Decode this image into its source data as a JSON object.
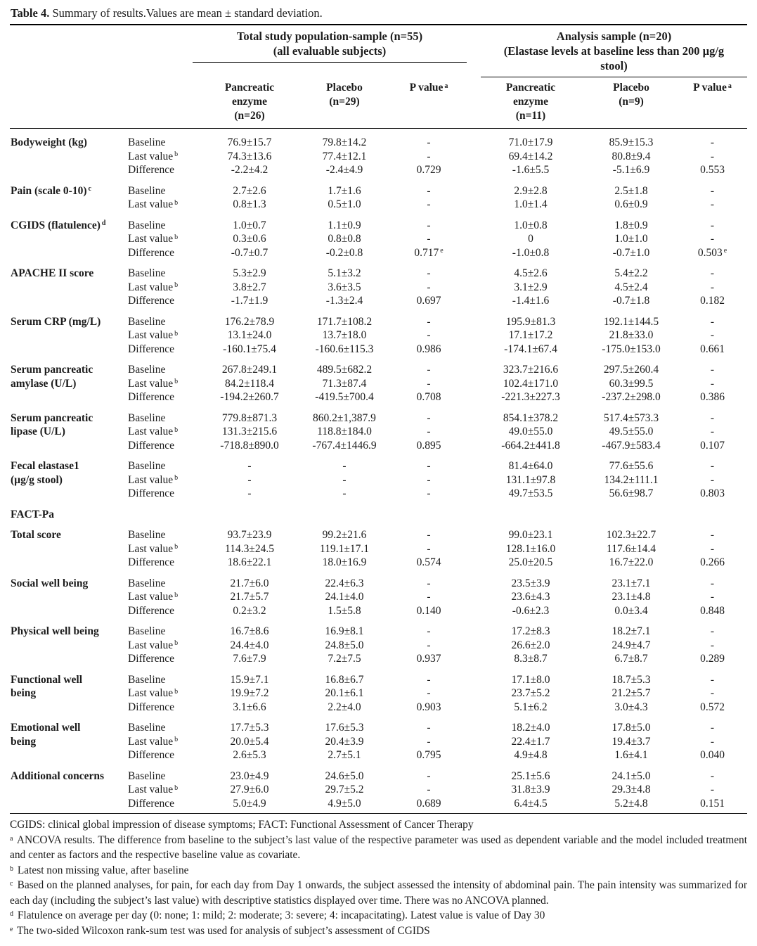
{
  "title": {
    "bold": "Table 4.",
    "rest": " Summary of results.Values are mean ± standard deviation."
  },
  "table": {
    "groups": [
      {
        "lines": [
          "Total study population-sample (n=55)",
          "(all evaluable subjects)"
        ]
      },
      {
        "lines": [
          "Analysis sample (n=20)",
          "(Elastase levels at baseline less than 200 µg/g",
          "stool)"
        ]
      }
    ],
    "columns": [
      {
        "lines": [
          "Pancreatic",
          "enzyme",
          "(n=26)"
        ]
      },
      {
        "lines": [
          "Placebo",
          "(n=29)"
        ]
      },
      {
        "lines": [
          "P value^a"
        ]
      },
      {
        "lines": [
          "Pancreatic",
          "enzyme",
          "(n=11)"
        ]
      },
      {
        "lines": [
          "Placebo",
          "(n=9)"
        ]
      },
      {
        "lines": [
          "P value^a"
        ]
      }
    ],
    "rows": [
      {
        "label": "Bodyweight (kg)",
        "entries": [
          {
            "sub": "Baseline",
            "values": [
              "76.9±15.7",
              "79.8±14.2",
              "-",
              "71.0±17.9",
              "85.9±15.3",
              "-"
            ]
          },
          {
            "sub": "Last value^b",
            "values": [
              "74.3±13.6",
              "77.4±12.1",
              "-",
              "69.4±14.2",
              "80.8±9.4",
              "-"
            ]
          },
          {
            "sub": "Difference",
            "values": [
              "-2.2±4.2",
              "-2.4±4.9",
              "0.729",
              "-1.6±5.5",
              "-5.1±6.9",
              "0.553"
            ]
          }
        ]
      },
      {
        "label": "Pain (scale 0-10)^c",
        "entries": [
          {
            "sub": "Baseline",
            "values": [
              "2.7±2.6",
              "1.7±1.6",
              "-",
              "2.9±2.8",
              "2.5±1.8",
              "-"
            ]
          },
          {
            "sub": "Last value^b",
            "values": [
              "0.8±1.3",
              "0.5±1.0",
              "-",
              "1.0±1.4",
              "0.6±0.9",
              "-"
            ]
          }
        ]
      },
      {
        "label": "CGIDS (flatulence)^d",
        "entries": [
          {
            "sub": "Baseline",
            "values": [
              "1.0±0.7",
              "1.1±0.9",
              "-",
              "1.0±0.8",
              "1.8±0.9",
              "-"
            ]
          },
          {
            "sub": "Last value^b",
            "values": [
              "0.3±0.6",
              "0.8±0.8",
              "-",
              "0",
              "1.0±1.0",
              "-"
            ]
          },
          {
            "sub": "Difference",
            "values": [
              "-0.7±0.7",
              "-0.2±0.8",
              "0.717^e",
              "-1.0±0.8",
              "-0.7±1.0",
              "0.503^e"
            ]
          }
        ]
      },
      {
        "label": "APACHE II score",
        "entries": [
          {
            "sub": "Baseline",
            "values": [
              "5.3±2.9",
              "5.1±3.2",
              "-",
              "4.5±2.6",
              "5.4±2.2",
              "-"
            ]
          },
          {
            "sub": "Last value^b",
            "values": [
              "3.8±2.7",
              "3.6±3.5",
              "-",
              "3.1±2.9",
              "4.5±2.4",
              "-"
            ]
          },
          {
            "sub": "Difference",
            "values": [
              "-1.7±1.9",
              "-1.3±2.4",
              "0.697",
              "-1.4±1.6",
              "-0.7±1.8",
              "0.182"
            ]
          }
        ]
      },
      {
        "label": "Serum CRP (mg/L)",
        "entries": [
          {
            "sub": "Baseline",
            "values": [
              "176.2±78.9",
              "171.7±108.2",
              "-",
              "195.9±81.3",
              "192.1±144.5",
              "-"
            ]
          },
          {
            "sub": "Last value^b",
            "values": [
              "13.1±24.0",
              "13.7±18.0",
              "-",
              "17.1±17.2",
              "21.8±33.0",
              "-"
            ]
          },
          {
            "sub": "Difference",
            "values": [
              "-160.1±75.4",
              "-160.6±115.3",
              "0.986",
              "-174.1±67.4",
              "-175.0±153.0",
              "0.661"
            ]
          }
        ]
      },
      {
        "label": "Serum pancreatic\namylase (U/L)",
        "entries": [
          {
            "sub": "Baseline",
            "values": [
              "267.8±249.1",
              "489.5±682.2",
              "-",
              "323.7±216.6",
              "297.5±260.4",
              "-"
            ]
          },
          {
            "sub": "Last value^b",
            "values": [
              "84.2±118.4",
              "71.3±87.4",
              "-",
              "102.4±171.0",
              "60.3±99.5",
              "-"
            ]
          },
          {
            "sub": "Difference",
            "values": [
              "-194.2±260.7",
              "-419.5±700.4",
              "0.708",
              "-221.3±227.3",
              "-237.2±298.0",
              "0.386"
            ]
          }
        ]
      },
      {
        "label": "Serum pancreatic\nlipase (U/L)",
        "entries": [
          {
            "sub": "Baseline",
            "values": [
              "779.8±871.3",
              "860.2±1,387.9",
              "-",
              "854.1±378.2",
              "517.4±573.3",
              "-"
            ]
          },
          {
            "sub": "Last value^b",
            "values": [
              "131.3±215.6",
              "118.8±184.0",
              "-",
              "49.0±55.0",
              "49.5±55.0",
              "-"
            ]
          },
          {
            "sub": "Difference",
            "values": [
              "-718.8±890.0",
              "-767.4±1446.9",
              "0.895",
              "-664.2±441.8",
              "-467.9±583.4",
              "0.107"
            ]
          }
        ]
      },
      {
        "label": "Fecal elastase1\n(µg/g stool)",
        "entries": [
          {
            "sub": "Baseline",
            "values": [
              "-",
              "-",
              "-",
              "81.4±64.0",
              "77.6±55.6",
              "-"
            ]
          },
          {
            "sub": "Last value^b",
            "values": [
              "-",
              "-",
              "-",
              "131.1±97.8",
              "134.2±111.1",
              "-"
            ]
          },
          {
            "sub": "Difference",
            "values": [
              "-",
              "-",
              "-",
              "49.7±53.5",
              "56.6±98.7",
              "0.803"
            ]
          }
        ]
      },
      {
        "label": "FACT-Pa",
        "entries": []
      },
      {
        "label": "Total score",
        "entries": [
          {
            "sub": "Baseline",
            "values": [
              "93.7±23.9",
              "99.2±21.6",
              "-",
              "99.0±23.1",
              "102.3±22.7",
              "-"
            ]
          },
          {
            "sub": "Last value^b",
            "values": [
              "114.3±24.5",
              "119.1±17.1",
              "-",
              "128.1±16.0",
              "117.6±14.4",
              "-"
            ]
          },
          {
            "sub": "Difference",
            "values": [
              "18.6±22.1",
              "18.0±16.9",
              "0.574",
              "25.0±20.5",
              "16.7±22.0",
              "0.266"
            ]
          }
        ]
      },
      {
        "label": "Social well being",
        "entries": [
          {
            "sub": "Baseline",
            "values": [
              "21.7±6.0",
              "22.4±6.3",
              "-",
              "23.5±3.9",
              "23.1±7.1",
              "-"
            ]
          },
          {
            "sub": "Last value^b",
            "values": [
              "21.7±5.7",
              "24.1±4.0",
              "-",
              "23.6±4.3",
              "23.1±4.8",
              "-"
            ]
          },
          {
            "sub": "Difference",
            "values": [
              "0.2±3.2",
              "1.5±5.8",
              "0.140",
              "-0.6±2.3",
              "0.0±3.4",
              "0.848"
            ]
          }
        ]
      },
      {
        "label": "Physical well being",
        "entries": [
          {
            "sub": "Baseline",
            "values": [
              "16.7±8.6",
              "16.9±8.1",
              "-",
              "17.2±8.3",
              "18.2±7.1",
              "-"
            ]
          },
          {
            "sub": "Last value^b",
            "values": [
              "24.4±4.0",
              "24.8±5.0",
              "-",
              "26.6±2.0",
              "24.9±4.7",
              "-"
            ]
          },
          {
            "sub": "Difference",
            "values": [
              "7.6±7.9",
              "7.2±7.5",
              "0.937",
              "8.3±8.7",
              "6.7±8.7",
              "0.289"
            ]
          }
        ]
      },
      {
        "label": "Functional well\nbeing",
        "entries": [
          {
            "sub": "Baseline",
            "values": [
              "15.9±7.1",
              "16.8±6.7",
              "-",
              "17.1±8.0",
              "18.7±5.3",
              "-"
            ]
          },
          {
            "sub": "Last value^b",
            "values": [
              "19.9±7.2",
              "20.1±6.1",
              "-",
              "23.7±5.2",
              "21.2±5.7",
              "-"
            ]
          },
          {
            "sub": "Difference",
            "values": [
              "3.1±6.6",
              "2.2±4.0",
              "0.903",
              "5.1±6.2",
              "3.0±4.3",
              "0.572"
            ]
          }
        ]
      },
      {
        "label": "Emotional well\nbeing",
        "entries": [
          {
            "sub": "Baseline",
            "values": [
              "17.7±5.3",
              "17.6±5.3",
              "-",
              "18.2±4.0",
              "17.8±5.0",
              "-"
            ]
          },
          {
            "sub": "Last value^b",
            "values": [
              "20.0±5.4",
              "20.4±3.9",
              "-",
              "22.4±1.7",
              "19.4±3.7",
              "-"
            ]
          },
          {
            "sub": "Difference",
            "values": [
              "2.6±5.3",
              "2.7±5.1",
              "0.795",
              "4.9±4.8",
              "1.6±4.1",
              "0.040"
            ]
          }
        ]
      },
      {
        "label": "Additional concerns",
        "entries": [
          {
            "sub": "Baseline",
            "values": [
              "23.0±4.9",
              "24.6±5.0",
              "-",
              "25.1±5.6",
              "24.1±5.0",
              "-"
            ]
          },
          {
            "sub": "Last value^b",
            "values": [
              "27.9±6.0",
              "29.7±5.2",
              "-",
              "31.8±3.9",
              "29.3±4.8",
              "-"
            ]
          },
          {
            "sub": "Difference",
            "values": [
              "5.0±4.9",
              "4.9±5.0",
              "0.689",
              "6.4±4.5",
              "5.2±4.8",
              "0.151"
            ]
          }
        ]
      }
    ]
  },
  "footnotes": [
    {
      "marker": "",
      "text": "CGIDS: clinical global impression of disease symptoms; FACT: Functional Assessment of Cancer Therapy"
    },
    {
      "marker": "a",
      "text": "ANCOVA results. The difference from baseline to the subject’s last value of the respective parameter was used as dependent variable and the model included treatment and center as factors and the respective baseline value as covariate."
    },
    {
      "marker": "b",
      "text": "Latest non missing value, after baseline"
    },
    {
      "marker": "c",
      "text": "Based on the planned analyses, for pain, for each day from Day 1 onwards, the subject assessed the intensity of abdominal pain. The pain intensity was summarized for each day (including the subject’s last value) with descriptive statistics displayed over time. There was no ANCOVA planned."
    },
    {
      "marker": "d",
      "text": "Flatulence on average per day (0: none; 1: mild; 2: moderate; 3: severe; 4: incapacitating). Latest value is value of Day 30"
    },
    {
      "marker": "e",
      "text": "The two-sided Wilcoxon rank-sum test was used for analysis of subject’s assessment of CGIDS"
    }
  ]
}
